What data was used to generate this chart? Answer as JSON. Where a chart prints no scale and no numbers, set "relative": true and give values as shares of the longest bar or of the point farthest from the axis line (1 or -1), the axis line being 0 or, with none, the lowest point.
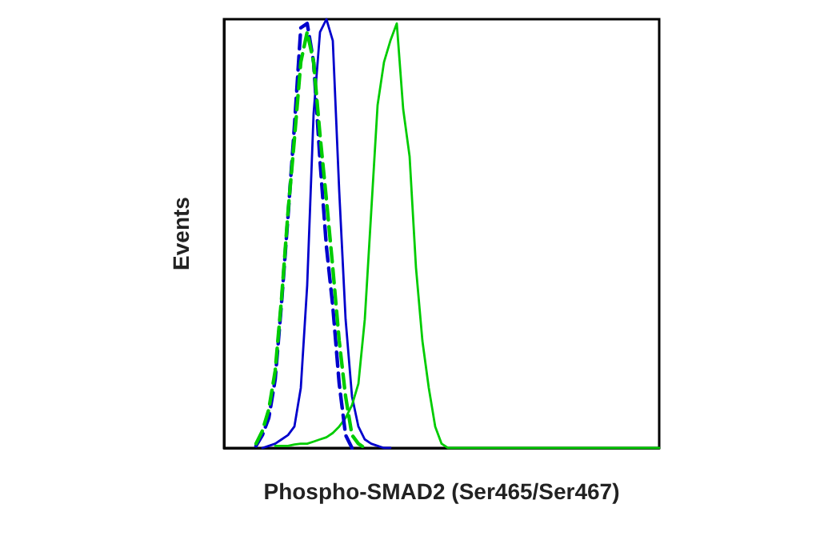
{
  "chart_data": {
    "type": "line",
    "relative": true,
    "xlabel": "Phospho-SMAD2 (Ser465/Ser467)",
    "ylabel": "Events",
    "marker": "none",
    "grid": false,
    "categories": [
      null,
      null,
      null,
      null,
      null,
      null,
      null,
      null,
      null,
      null,
      null,
      null,
      null,
      null,
      null,
      null,
      null,
      null,
      null,
      null,
      null,
      null,
      null,
      null,
      null,
      null,
      null,
      null,
      null,
      null,
      null,
      null,
      null,
      null,
      null,
      null,
      null,
      null,
      null,
      null,
      null,
      null,
      null,
      null,
      null,
      null,
      null,
      null,
      null,
      null,
      null,
      null,
      null,
      null,
      null,
      null,
      null,
      null,
      null,
      null,
      null,
      null,
      null,
      null,
      null,
      null,
      null,
      null,
      null
    ],
    "series": [
      {
        "color": "#0000cc",
        "line_style": "solid",
        "values": [
          null,
          null,
          null,
          null,
          null,
          null,
          0,
          0.005,
          0.01,
          0.02,
          0.03,
          0.05,
          0.14,
          0.38,
          0.78,
          0.97,
          1.0,
          0.95,
          0.6,
          0.3,
          0.12,
          0.05,
          0.02,
          0.01,
          0.005,
          0,
          0,
          null,
          null,
          null,
          null,
          null,
          null,
          null,
          null,
          null,
          null,
          null,
          null,
          null,
          null,
          null,
          null,
          null,
          null,
          null,
          null,
          null,
          null,
          null,
          null,
          null,
          null,
          null,
          null,
          null,
          null,
          null,
          null,
          null,
          null,
          null,
          null,
          null,
          null,
          null,
          null,
          null,
          null
        ]
      },
      {
        "color": "#00cc00",
        "line_style": "solid",
        "values": [
          null,
          null,
          null,
          null,
          null,
          null,
          null,
          null,
          0.005,
          0.005,
          0.005,
          0.008,
          0.01,
          0.01,
          0.015,
          0.02,
          0.025,
          0.035,
          0.05,
          0.07,
          0.1,
          0.15,
          0.3,
          0.55,
          0.8,
          0.9,
          0.95,
          0.99,
          0.79,
          0.68,
          0.42,
          0.25,
          0.14,
          0.05,
          0.01,
          0,
          0,
          0,
          0,
          0,
          0,
          0,
          0,
          0,
          0,
          0,
          0,
          0,
          0,
          0,
          0,
          0,
          0,
          0,
          0,
          0,
          0,
          0,
          0,
          0,
          0,
          0,
          0,
          0,
          0,
          0,
          0,
          0,
          0
        ]
      },
      {
        "color": "#0000cc",
        "line_style": "dashed",
        "values": [
          null,
          null,
          null,
          null,
          null,
          0.005,
          0.03,
          0.07,
          0.16,
          0.34,
          0.54,
          0.75,
          0.98,
          0.99,
          0.9,
          0.67,
          0.47,
          0.33,
          0.15,
          0.03,
          0,
          null,
          null,
          null,
          null,
          null,
          null,
          null,
          null,
          null,
          null,
          null,
          null,
          null,
          null,
          null,
          null,
          null,
          null,
          null,
          null,
          null,
          null,
          null,
          null,
          null,
          null,
          null,
          null,
          null,
          null,
          null,
          null,
          null,
          null,
          null,
          null,
          null,
          null,
          null,
          null,
          null,
          null,
          null,
          null,
          null,
          null,
          null,
          null
        ]
      },
      {
        "color": "#00cc00",
        "line_style": "dashed",
        "values": [
          null,
          null,
          null,
          null,
          null,
          0.01,
          0.04,
          0.09,
          0.18,
          0.35,
          0.55,
          0.72,
          0.9,
          0.97,
          0.9,
          0.73,
          0.58,
          0.42,
          0.25,
          0.12,
          0.03,
          0.01,
          0,
          null,
          null,
          null,
          null,
          null,
          null,
          null,
          null,
          null,
          null,
          null,
          null,
          null,
          null,
          null,
          null,
          null,
          null,
          null,
          null,
          null,
          null,
          null,
          null,
          null,
          null,
          null,
          null,
          null,
          null,
          null,
          null,
          null,
          null,
          null,
          null,
          null,
          null,
          null,
          null,
          null,
          null,
          null,
          null,
          null,
          null
        ]
      }
    ]
  }
}
